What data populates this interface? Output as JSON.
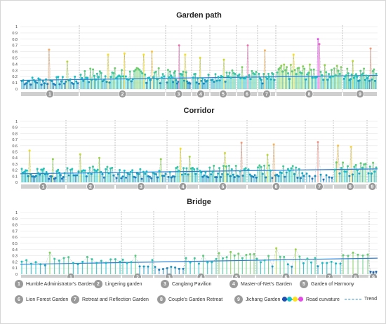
{
  "chart_data": [
    {
      "type": "line",
      "title": "Garden path",
      "ylim": [
        0,
        1
      ],
      "yticks": [
        "0",
        "0.1",
        "0.2",
        "0.3",
        "0.4",
        "0.5",
        "0.6",
        "0.7",
        "0.8",
        "0.9",
        "1"
      ],
      "grid": true,
      "segments": [
        {
          "label": "1",
          "n": 38,
          "base": 0.12,
          "var": 0.1,
          "peaks": [
            {
              "i": 18,
              "v": 0.63
            },
            {
              "i": 30,
              "v": 0.44
            }
          ]
        },
        {
          "label": "2",
          "n": 62,
          "base": 0.2,
          "var": 0.18,
          "peaks": [
            {
              "i": 20,
              "v": 0.55
            },
            {
              "i": 32,
              "v": 0.57
            },
            {
              "i": 46,
              "v": 0.55
            },
            {
              "i": 52,
              "v": 0.6
            }
          ]
        },
        {
          "label": "3",
          "n": 24,
          "base": 0.18,
          "var": 0.16,
          "peaks": [
            {
              "i": 12,
              "v": 0.7
            },
            {
              "i": 18,
              "v": 0.55
            }
          ]
        },
        {
          "label": "4",
          "n": 14,
          "base": 0.16,
          "var": 0.14,
          "peaks": [
            {
              "i": 6,
              "v": 0.5
            }
          ]
        },
        {
          "label": "5",
          "n": 18,
          "base": 0.2,
          "var": 0.14,
          "peaks": [
            {
              "i": 9,
              "v": 0.47
            }
          ]
        },
        {
          "label": "6",
          "n": 14,
          "base": 0.25,
          "var": 0.16,
          "peaks": [
            {
              "i": 7,
              "v": 0.7
            }
          ]
        },
        {
          "label": "7",
          "n": 14,
          "base": 0.15,
          "var": 0.14,
          "peaks": [
            {
              "i": 5,
              "v": 0.62
            }
          ]
        },
        {
          "label": "8",
          "n": 48,
          "base": 0.25,
          "var": 0.18,
          "peaks": [
            {
              "i": 30,
              "v": 0.8
            },
            {
              "i": 31,
              "v": 0.72
            },
            {
              "i": 12,
              "v": 0.55
            }
          ]
        },
        {
          "label": "9",
          "n": 30,
          "base": 0.22,
          "var": 0.16,
          "peaks": [
            {
              "i": 24,
              "v": 0.65
            },
            {
              "i": 8,
              "v": 0.45
            }
          ]
        }
      ],
      "trend": [
        0.14,
        0.22
      ]
    },
    {
      "type": "line",
      "title": "Corridor",
      "ylim": [
        0,
        1
      ],
      "yticks": [
        "0",
        "0.1",
        "0.2",
        "0.3",
        "0.4",
        "0.5",
        "0.6",
        "0.7",
        "0.8",
        "0.9",
        "1"
      ],
      "grid": true,
      "segments": [
        {
          "label": "1",
          "n": 34,
          "base": 0.13,
          "var": 0.12,
          "peaks": [
            {
              "i": 6,
              "v": 0.52
            },
            {
              "i": 24,
              "v": 0.38
            }
          ]
        },
        {
          "label": "2",
          "n": 30,
          "base": 0.15,
          "var": 0.14,
          "peaks": [
            {
              "i": 8,
              "v": 0.46
            },
            {
              "i": 20,
              "v": 0.4
            }
          ]
        },
        {
          "label": "3",
          "n": 32,
          "base": 0.12,
          "var": 0.12,
          "peaks": [
            {
              "i": 28,
              "v": 0.38
            }
          ]
        },
        {
          "label": "4",
          "n": 20,
          "base": 0.15,
          "var": 0.14,
          "peaks": [
            {
              "i": 8,
              "v": 0.55
            },
            {
              "i": 14,
              "v": 0.42
            }
          ]
        },
        {
          "label": "5",
          "n": 34,
          "base": 0.16,
          "var": 0.14,
          "peaks": [
            {
              "i": 30,
              "v": 0.65
            },
            {
              "i": 18,
              "v": 0.48
            }
          ]
        },
        {
          "label": "6",
          "n": 36,
          "base": 0.16,
          "var": 0.15,
          "peaks": [
            {
              "i": 16,
              "v": 0.62
            },
            {
              "i": 12,
              "v": 0.45
            }
          ]
        },
        {
          "label": "7",
          "n": 10,
          "base": 0.1,
          "var": 0.1,
          "peaks": [
            {
              "i": 4,
              "v": 0.66
            }
          ]
        },
        {
          "label": "8",
          "n": 20,
          "base": 0.2,
          "var": 0.18,
          "peaks": [
            {
              "i": 2,
              "v": 0.6
            },
            {
              "i": 10,
              "v": 0.58
            }
          ]
        },
        {
          "label": "9",
          "n": 6,
          "base": 0.2,
          "var": 0.1,
          "peaks": [
            {
              "i": 3,
              "v": 0.32
            }
          ]
        }
      ],
      "trend": [
        0.14,
        0.22
      ]
    },
    {
      "type": "line",
      "title": "Bridge",
      "ylim": [
        0,
        1
      ],
      "yticks": [
        "0",
        "0.1",
        "0.2",
        "0.3",
        "0.4",
        "0.5",
        "0.6",
        "0.7",
        "0.8",
        "0.9",
        "1"
      ],
      "grid": true,
      "segments": [
        {
          "label": "1",
          "n": 22,
          "base": 0.2,
          "var": 0.1,
          "peaks": [
            {
              "i": 6,
              "v": 0.35
            },
            {
              "i": 14,
              "v": 0.28
            }
          ]
        },
        {
          "label": "2",
          "n": 8,
          "base": 0.18,
          "var": 0.1,
          "peaks": [
            {
              "i": 3,
              "v": 0.3
            }
          ]
        },
        {
          "label": "3",
          "n": 8,
          "base": 0.08,
          "var": 0.05,
          "peaks": [
            {
              "i": 4,
              "v": 0.12
            }
          ]
        },
        {
          "label": "4",
          "n": 8,
          "base": 0.2,
          "var": 0.08,
          "peaks": [
            {
              "i": 4,
              "v": 0.3
            }
          ]
        },
        {
          "label": "5",
          "n": 10,
          "base": 0.28,
          "var": 0.08,
          "peaks": [
            {
              "i": 3,
              "v": 0.36
            }
          ]
        },
        {
          "label": "6",
          "n": 16,
          "base": 0.2,
          "var": 0.15,
          "peaks": [
            {
              "i": 5,
              "v": 0.42
            },
            {
              "i": 10,
              "v": 0.4
            }
          ]
        },
        {
          "label": "7",
          "n": 6,
          "base": 0.15,
          "var": 0.05,
          "peaks": [
            {
              "i": 3,
              "v": 0.2
            }
          ]
        },
        {
          "label": "8",
          "n": 6,
          "base": 0.32,
          "var": 0.04,
          "peaks": [
            {
              "i": 2,
              "v": 0.35
            }
          ]
        },
        {
          "label": "9",
          "n": 3,
          "base": 0.05,
          "var": 0.03,
          "peaks": []
        }
      ],
      "trend": [
        0.16,
        0.26
      ]
    }
  ],
  "legend": {
    "gardens": [
      {
        "num": "1",
        "name": "Humble Administrator's Garden"
      },
      {
        "num": "2",
        "name": "Lingering  garden"
      },
      {
        "num": "3",
        "name": "Canglang Pavilion"
      },
      {
        "num": "4",
        "name": "Master-of-Net's Garden"
      },
      {
        "num": "5",
        "name": "Garden of Harmony"
      },
      {
        "num": "6",
        "name": "Lion Forest Garden"
      },
      {
        "num": "7",
        "name": "Retreat and Reflection Garden"
      },
      {
        "num": "8",
        "name": "Couple's Garden Retreat"
      },
      {
        "num": "9",
        "name": "Jichang Garden"
      }
    ],
    "curvature_label": "Road curvature",
    "trend_label": "Trend"
  },
  "colors": {
    "gradient": [
      "#1f4fb0",
      "#17c0c8",
      "#8fd14f",
      "#ffe01a",
      "#e24be6"
    ],
    "trend": "#2a7fd4",
    "badge": "#9a9a9a",
    "segment_bar": "#cfcfcf",
    "separator": "#9a9a9a",
    "grid": "#e6e6e6"
  }
}
